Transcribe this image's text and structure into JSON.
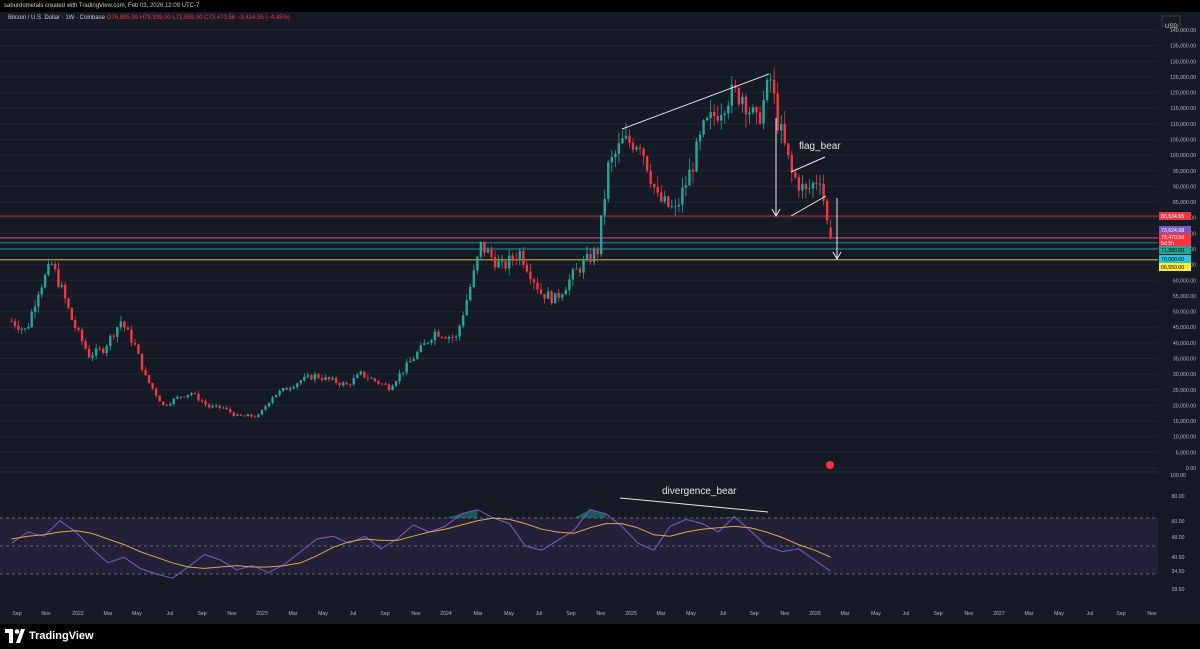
{
  "header": {
    "credit": "saburdometals created with TradingView.com, Feb 03, 2026 12:09 UTC-7",
    "symbol_line": "Bitcoin / U.S. Dollar · 1W · Coinbase",
    "ohlc": "O76,895.99 H79,339.00 L72,859.00 C73,470.58 −3,424.95 (−4.45%)"
  },
  "currency_label": "USD",
  "brand": {
    "label": "TradingView",
    "accent": "#ffffff"
  },
  "colors": {
    "up": "#26a69a",
    "down": "#f23645",
    "background": "#161a25",
    "grid": "#222634",
    "rsi": "#7e57c2",
    "rsi_ma": "#e0a34a"
  },
  "chart_data": [
    {
      "type": "candlestick",
      "series_name": "Bitcoin / U.S. Dollar · 1W · Coinbase",
      "y_axis_ticks": [
        "140,000.00",
        "135,000.00",
        "130,000.00",
        "125,000.00",
        "120,000.00",
        "115,000.00",
        "110,000.00",
        "105,000.00",
        "100,000.00",
        "95,000.00",
        "90,000.00",
        "85,000.00",
        "80,000.00",
        "75,000.00",
        "70,000.00",
        "65,000.00",
        "60,000.00",
        "55,000.00",
        "50,000.00",
        "45,000.00",
        "40,000.00",
        "35,000.00",
        "30,000.00",
        "25,000.00",
        "20,000.00",
        "15,000.00",
        "10,000.00",
        "5,000.00",
        "0.00"
      ],
      "ylim": [
        0,
        140000
      ],
      "x_axis_ticks": [
        "Sep",
        "Nov",
        "2022",
        "Mar",
        "May",
        "Jul",
        "Sep",
        "Nov",
        "2023",
        "Mar",
        "May",
        "Jul",
        "Sep",
        "Nov",
        "2024",
        "Mar",
        "May",
        "Jul",
        "Sep",
        "Nov",
        "2025",
        "Mar",
        "May",
        "Jul",
        "Sep",
        "Nov",
        "2026",
        "Mar",
        "May",
        "Jul",
        "Sep",
        "Nov",
        "2027",
        "Mar",
        "May",
        "Jul",
        "Sep",
        "Nov"
      ],
      "horizontal_levels": [
        {
          "label": "80,534.65",
          "value": 80534.65,
          "color": "#f23645"
        },
        {
          "label": "73,624.98",
          "value": 73624.98,
          "color": "#7e57c2"
        },
        {
          "label": "73,470.58",
          "value": 73470.58,
          "color": "#f23645"
        },
        {
          "label": "5d 5h",
          "value": 72350,
          "color": "#f23645"
        },
        {
          "label": "71,980.00",
          "value": 71980,
          "color": "#26a69a"
        },
        {
          "label": "70,000.00",
          "value": 70000,
          "color": "#26c6da"
        },
        {
          "label": "66,550.00",
          "value": 66550,
          "color": "#ffeb3b"
        }
      ],
      "annotations": [
        "flag_bear"
      ],
      "weekly_closes": [
        {
          "date": "2021-08-15",
          "close": 47000
        },
        {
          "date": "2021-09-15",
          "close": 43800
        },
        {
          "date": "2021-10-10",
          "close": 57000
        },
        {
          "date": "2021-11-07",
          "close": 65000
        },
        {
          "date": "2021-11-28",
          "close": 57000
        },
        {
          "date": "2021-12-20",
          "close": 47000
        },
        {
          "date": "2022-01-23",
          "close": 36000
        },
        {
          "date": "2022-02-20",
          "close": 38000
        },
        {
          "date": "2022-03-27",
          "close": 47000
        },
        {
          "date": "2022-04-24",
          "close": 39000
        },
        {
          "date": "2022-05-15",
          "close": 29000
        },
        {
          "date": "2022-06-19",
          "close": 20000
        },
        {
          "date": "2022-07-24",
          "close": 23000
        },
        {
          "date": "2022-08-14",
          "close": 24000
        },
        {
          "date": "2022-09-18",
          "close": 19500
        },
        {
          "date": "2022-10-16",
          "close": 19200
        },
        {
          "date": "2022-11-13",
          "close": 16500
        },
        {
          "date": "2022-12-25",
          "close": 16600
        },
        {
          "date": "2023-01-22",
          "close": 23000
        },
        {
          "date": "2023-03-19",
          "close": 28000
        },
        {
          "date": "2023-04-16",
          "close": 29500
        },
        {
          "date": "2023-06-18",
          "close": 26500
        },
        {
          "date": "2023-07-16",
          "close": 30000
        },
        {
          "date": "2023-09-10",
          "close": 25800
        },
        {
          "date": "2023-10-22",
          "close": 34000
        },
        {
          "date": "2023-12-10",
          "close": 43500
        },
        {
          "date": "2024-01-21",
          "close": 41500
        },
        {
          "date": "2024-02-25",
          "close": 62000
        },
        {
          "date": "2024-03-10",
          "close": 71000
        },
        {
          "date": "2024-04-21",
          "close": 64000
        },
        {
          "date": "2024-05-26",
          "close": 69000
        },
        {
          "date": "2024-07-07",
          "close": 56000
        },
        {
          "date": "2024-08-04",
          "close": 54000
        },
        {
          "date": "2024-09-15",
          "close": 63000
        },
        {
          "date": "2024-10-27",
          "close": 69500
        },
        {
          "date": "2024-11-17",
          "close": 96000
        },
        {
          "date": "2024-12-15",
          "close": 104000
        },
        {
          "date": "2025-01-19",
          "close": 104500
        },
        {
          "date": "2025-02-23",
          "close": 86000
        },
        {
          "date": "2025-03-30",
          "close": 82000
        },
        {
          "date": "2025-04-27",
          "close": 94000
        },
        {
          "date": "2025-05-25",
          "close": 108000
        },
        {
          "date": "2025-07-13",
          "close": 119000
        },
        {
          "date": "2025-08-10",
          "close": 119500
        },
        {
          "date": "2025-09-07",
          "close": 110000
        },
        {
          "date": "2025-10-05",
          "close": 124000
        },
        {
          "date": "2025-10-19",
          "close": 111000
        },
        {
          "date": "2025-11-16",
          "close": 94000
        },
        {
          "date": "2025-12-14",
          "close": 88000
        },
        {
          "date": "2026-01-11",
          "close": 93500
        },
        {
          "date": "2026-01-25",
          "close": 78500
        },
        {
          "date": "2026-02-01",
          "close": 73470.58
        }
      ]
    },
    {
      "type": "line",
      "pane": "RSI",
      "y_axis_ticks": [
        "100.00",
        "80.00",
        "60.00",
        "48.00",
        "40.50",
        "34.50",
        "28.50"
      ],
      "ylim": [
        20,
        100
      ],
      "band": [
        30,
        70
      ],
      "annotations": [
        "divergence_bear"
      ],
      "series": [
        {
          "values": [
            52,
            60,
            57,
            68,
            60,
            48,
            38,
            42,
            34,
            30,
            27,
            35,
            44,
            40,
            33,
            36,
            31,
            37,
            46,
            55,
            57,
            52,
            57,
            48,
            55,
            65,
            60,
            64,
            73,
            76,
            70,
            66,
            50,
            47,
            54,
            61,
            76,
            73,
            64,
            52,
            47,
            64,
            69,
            66,
            60,
            71,
            61,
            50,
            46,
            48,
            40,
            32
          ]
        },
        {
          "values": [
            55,
            57,
            58,
            60,
            61,
            59,
            55,
            51,
            46,
            42,
            38,
            35,
            34,
            35,
            36,
            35,
            35,
            36,
            38,
            43,
            49,
            53,
            55,
            54,
            54,
            57,
            60,
            62,
            65,
            68,
            70,
            69,
            66,
            62,
            60,
            59,
            63,
            66,
            66,
            63,
            58,
            57,
            60,
            62,
            63,
            64,
            63,
            60,
            56,
            51,
            47,
            42
          ]
        }
      ]
    }
  ]
}
